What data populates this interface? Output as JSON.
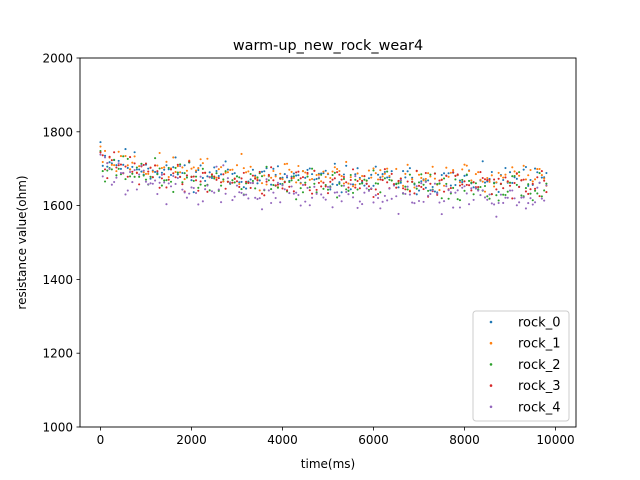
{
  "chart_data": {
    "type": "scatter",
    "title": "warm-up_new_rock_wear4",
    "xlabel": "time(ms)",
    "ylabel": "resistance value(ohm)",
    "xlim": [
      -450,
      10450
    ],
    "ylim": [
      1000,
      2000
    ],
    "xticks": [
      0,
      2000,
      4000,
      6000,
      8000,
      10000
    ],
    "yticks": [
      1000,
      1200,
      1400,
      1600,
      1800,
      2000
    ],
    "grid": false,
    "legend_position": "bottom-right",
    "sample_interval_ms": 50,
    "x_range": [
      0,
      9800
    ],
    "series": [
      {
        "name": "rock_0",
        "color": "#1f77b4",
        "start": 1772,
        "mean": 1676,
        "spread": 42,
        "seed": 11
      },
      {
        "name": "rock_1",
        "color": "#ff7f0e",
        "start": 1760,
        "mean": 1688,
        "spread": 40,
        "seed": 23
      },
      {
        "name": "rock_2",
        "color": "#2ca02c",
        "start": 1748,
        "mean": 1662,
        "spread": 44,
        "seed": 37
      },
      {
        "name": "rock_3",
        "color": "#d62728",
        "start": 1744,
        "mean": 1668,
        "spread": 42,
        "seed": 41
      },
      {
        "name": "rock_4",
        "color": "#9467bd",
        "start": 1738,
        "mean": 1640,
        "spread": 50,
        "seed": 59
      }
    ]
  }
}
